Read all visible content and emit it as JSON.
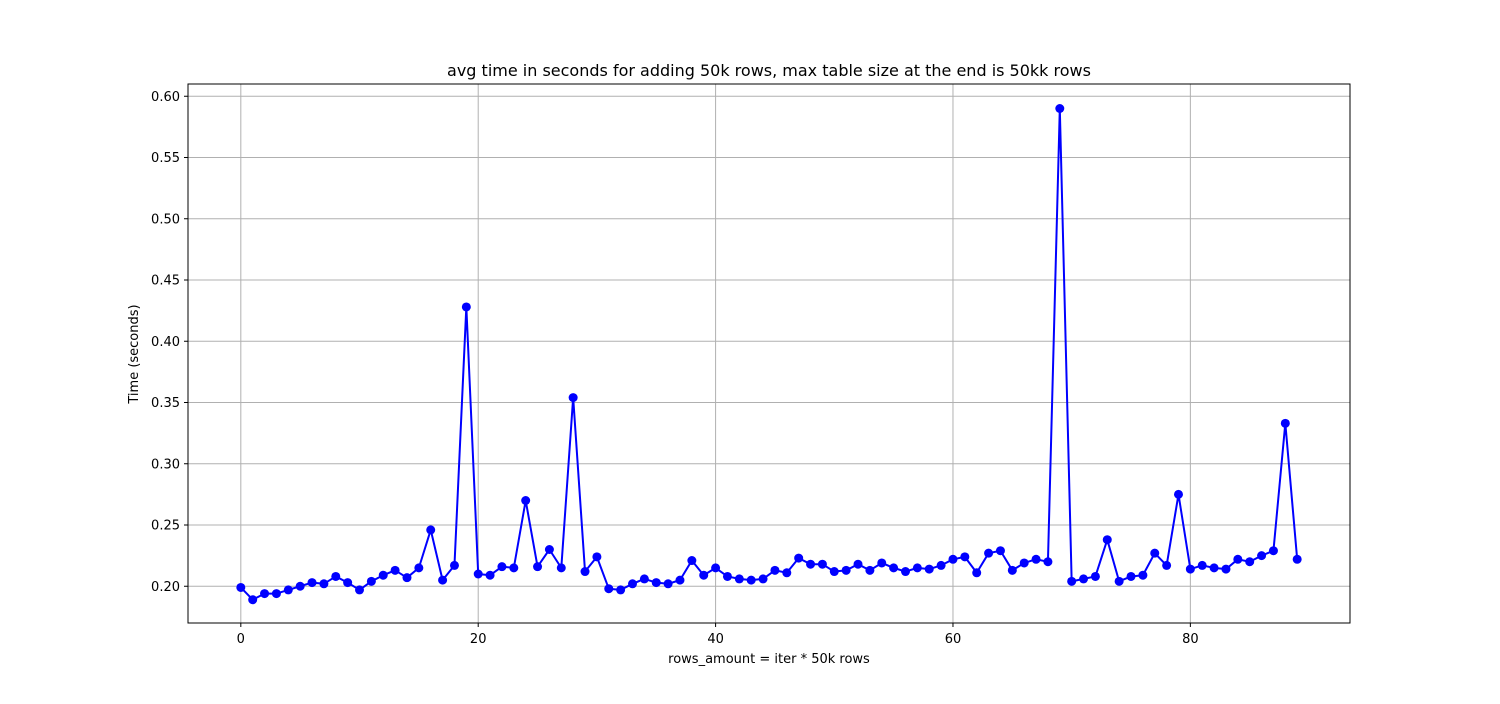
{
  "chart_data": {
    "type": "line",
    "title": "avg time in seconds for adding 50k rows, max table size at the end is 50kk rows",
    "xlabel": "rows_amount = iter * 50k rows",
    "ylabel": "Time (seconds)",
    "xlim": [
      -4.45,
      93.45
    ],
    "ylim": [
      0.17,
      0.61
    ],
    "xticks": [
      0,
      20,
      40,
      60,
      80
    ],
    "yticks": [
      0.2,
      0.25,
      0.3,
      0.35,
      0.4,
      0.45,
      0.5,
      0.55,
      0.6
    ],
    "xtick_labels": [
      "0",
      "20",
      "40",
      "60",
      "80"
    ],
    "ytick_labels": [
      "0.20",
      "0.25",
      "0.30",
      "0.35",
      "0.40",
      "0.45",
      "0.50",
      "0.55",
      "0.60"
    ],
    "grid": true,
    "color": "#0000ff",
    "x": [
      0,
      1,
      2,
      3,
      4,
      5,
      6,
      7,
      8,
      9,
      10,
      11,
      12,
      13,
      14,
      15,
      16,
      17,
      18,
      19,
      20,
      21,
      22,
      23,
      24,
      25,
      26,
      27,
      28,
      29,
      30,
      31,
      32,
      33,
      34,
      35,
      36,
      37,
      38,
      39,
      40,
      41,
      42,
      43,
      44,
      45,
      46,
      47,
      48,
      49,
      50,
      51,
      52,
      53,
      54,
      55,
      56,
      57,
      58,
      59,
      60,
      61,
      62,
      63,
      64,
      65,
      66,
      67,
      68,
      69,
      70,
      71,
      72,
      73,
      74,
      75,
      76,
      77,
      78,
      79,
      80,
      81,
      82,
      83,
      84,
      85,
      86,
      87,
      88,
      89
    ],
    "series": [
      {
        "values": [
          0.199,
          0.189,
          0.194,
          0.194,
          0.197,
          0.2,
          0.203,
          0.202,
          0.208,
          0.203,
          0.197,
          0.204,
          0.209,
          0.213,
          0.207,
          0.215,
          0.246,
          0.205,
          0.217,
          0.428,
          0.21,
          0.209,
          0.216,
          0.215,
          0.27,
          0.216,
          0.23,
          0.215,
          0.354,
          0.212,
          0.224,
          0.198,
          0.197,
          0.202,
          0.206,
          0.203,
          0.202,
          0.205,
          0.221,
          0.209,
          0.215,
          0.208,
          0.206,
          0.205,
          0.206,
          0.213,
          0.211,
          0.223,
          0.218,
          0.218,
          0.212,
          0.213,
          0.218,
          0.213,
          0.219,
          0.215,
          0.212,
          0.215,
          0.214,
          0.217,
          0.222,
          0.224,
          0.211,
          0.227,
          0.229,
          0.213,
          0.219,
          0.222,
          0.22,
          0.59,
          0.204,
          0.206,
          0.208,
          0.238,
          0.204,
          0.208,
          0.209,
          0.227,
          0.217,
          0.275,
          0.214,
          0.217,
          0.215,
          0.214,
          0.222,
          0.22,
          0.225,
          0.229,
          0.333,
          0.222
        ]
      }
    ]
  }
}
